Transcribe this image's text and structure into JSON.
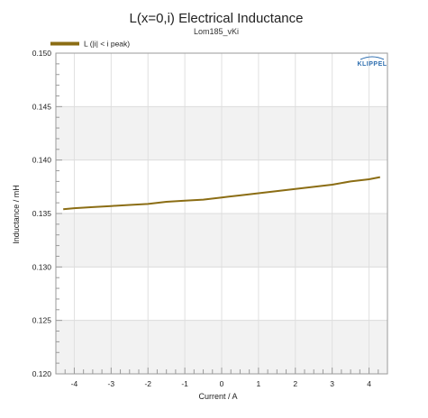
{
  "chart_data": {
    "type": "line",
    "title": "L(x=0,i) Electrical Inductance",
    "subtitle": "Lom185_vKi",
    "xlabel": "Current / A",
    "ylabel": "Inductance / mH",
    "xlim": [
      -4.5,
      4.5
    ],
    "ylim": [
      0.12,
      0.15
    ],
    "x_ticks": [
      -4,
      -3,
      -2,
      -1,
      0,
      1,
      2,
      3,
      4
    ],
    "x_tick_labels": [
      "-4",
      "-3",
      "-2",
      "-1",
      "0",
      "1",
      "2",
      "3",
      "4"
    ],
    "y_ticks": [
      0.12,
      0.125,
      0.13,
      0.135,
      0.14,
      0.145,
      0.15
    ],
    "y_tick_labels": [
      "0.120",
      "0.125",
      "0.130",
      "0.135",
      "0.140",
      "0.145",
      "0.150"
    ],
    "grid": true,
    "legend_position": "top-left",
    "series": [
      {
        "name": "L (|i| < i peak)",
        "color": "#8b6d14",
        "x": [
          -4.3,
          -4,
          -3.5,
          -3,
          -2.5,
          -2,
          -1.5,
          -1,
          -0.5,
          0,
          0.5,
          1,
          1.5,
          2,
          2.5,
          3,
          3.5,
          4,
          4.3
        ],
        "y": [
          0.1354,
          0.1355,
          0.1356,
          0.1357,
          0.1358,
          0.1359,
          0.1361,
          0.1362,
          0.1363,
          0.1365,
          0.1367,
          0.1369,
          0.1371,
          0.1373,
          0.1375,
          0.1377,
          0.138,
          0.1382,
          0.1384
        ]
      }
    ]
  },
  "logo": {
    "text": "KLIPPEL",
    "color": "#2f6fb0"
  }
}
